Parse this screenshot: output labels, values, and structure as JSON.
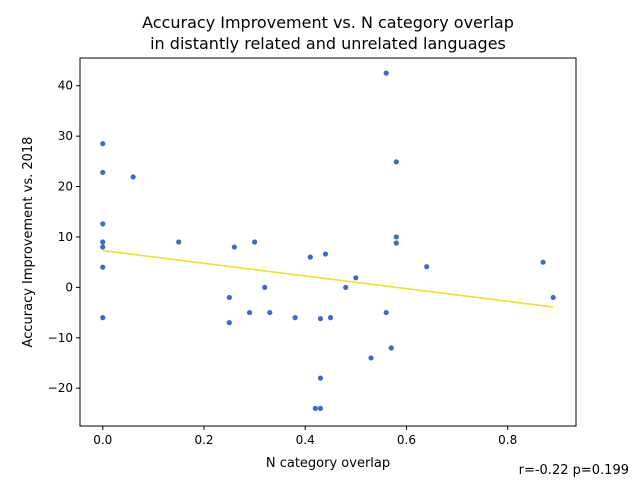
{
  "chart_data": {
    "type": "scatter",
    "title_lines": [
      "Accuracy Improvement vs. N category overlap",
      "in distantly related and unrelated languages"
    ],
    "xlabel": "N category overlap",
    "ylabel": "Accuracy Improvement vs. 2018",
    "xlim": [
      -0.045,
      0.935
    ],
    "ylim": [
      -27.5,
      45.5
    ],
    "x_ticks": [
      0.0,
      0.2,
      0.4,
      0.6,
      0.8
    ],
    "x_tick_labels": [
      "0.0",
      "0.2",
      "0.4",
      "0.6",
      "0.8"
    ],
    "y_ticks": [
      -20,
      -10,
      0,
      10,
      20,
      30,
      40
    ],
    "y_tick_labels": [
      "−20",
      "−10",
      "0",
      "10",
      "20",
      "30",
      "40"
    ],
    "grid": false,
    "point_color": "#3a6bc9",
    "fit_line_color": "#f5dd28",
    "points": [
      {
        "x": 0.0,
        "y": 28.5
      },
      {
        "x": 0.0,
        "y": 22.8
      },
      {
        "x": 0.0,
        "y": 12.6
      },
      {
        "x": 0.0,
        "y": 9.0
      },
      {
        "x": 0.0,
        "y": 8.0
      },
      {
        "x": 0.0,
        "y": 4.0
      },
      {
        "x": 0.0,
        "y": -6.0
      },
      {
        "x": 0.06,
        "y": 21.9
      },
      {
        "x": 0.15,
        "y": 9.0
      },
      {
        "x": 0.25,
        "y": -2.0
      },
      {
        "x": 0.25,
        "y": -7.0
      },
      {
        "x": 0.26,
        "y": 8.0
      },
      {
        "x": 0.29,
        "y": -5.0
      },
      {
        "x": 0.3,
        "y": 9.0
      },
      {
        "x": 0.32,
        "y": 0.0
      },
      {
        "x": 0.33,
        "y": -5.0
      },
      {
        "x": 0.38,
        "y": -6.0
      },
      {
        "x": 0.41,
        "y": 6.0
      },
      {
        "x": 0.42,
        "y": -24.0
      },
      {
        "x": 0.43,
        "y": -24.0
      },
      {
        "x": 0.43,
        "y": -18.0
      },
      {
        "x": 0.43,
        "y": -6.2
      },
      {
        "x": 0.44,
        "y": 6.6
      },
      {
        "x": 0.45,
        "y": -6.0
      },
      {
        "x": 0.48,
        "y": 0.0
      },
      {
        "x": 0.5,
        "y": 1.9
      },
      {
        "x": 0.53,
        "y": -14.0
      },
      {
        "x": 0.56,
        "y": 42.5
      },
      {
        "x": 0.56,
        "y": -5.0
      },
      {
        "x": 0.57,
        "y": -12.0
      },
      {
        "x": 0.58,
        "y": 24.9
      },
      {
        "x": 0.58,
        "y": 10.0
      },
      {
        "x": 0.58,
        "y": 8.8
      },
      {
        "x": 0.64,
        "y": 4.1
      },
      {
        "x": 0.87,
        "y": 5.0
      },
      {
        "x": 0.89,
        "y": -2.0
      }
    ],
    "fit_line": {
      "x": [
        0.0,
        0.89
      ],
      "y": [
        7.3,
        -3.9
      ]
    },
    "annotation": "r=-0.22 p=0.199"
  }
}
